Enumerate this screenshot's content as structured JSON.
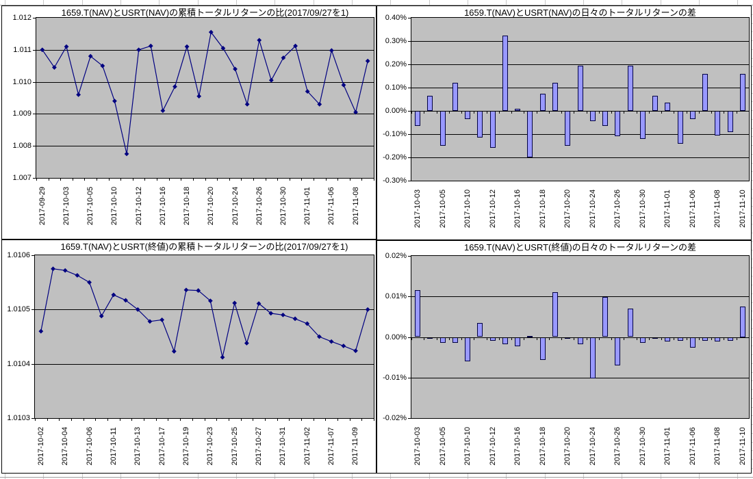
{
  "app": {
    "description_labels": {
      "tl_title": "1659.T(NAV)とUSRT(NAV)の累積トータルリターンの比(2017/09/27を1)",
      "tr_title": "1659.T(NAV)とUSRT(NAV)の日々のトータルリターンの差",
      "bl_title": "1659.T(NAV)とUSRT(終値)の累積トータルリターンの比(2017/09/27を1)",
      "br_title": "1659.T(NAV)とUSRT(終値)の日々のトータルリターンの差"
    },
    "colors": {
      "plot_bg": "#c0c0c0",
      "line": "#000080",
      "marker": "#000080",
      "bar_fill": "#9999ff",
      "bar_border": "#000040",
      "gridline": "#000000",
      "chart_bg": "#ffffff"
    }
  },
  "chart_data": [
    {
      "type": "line",
      "title": "1659.T(NAV)とUSRT(NAV)の累積トータルリターンの比(2017/09/27を1)",
      "legend": "none",
      "grid": "major-horizontal",
      "ylim": [
        1.007,
        1.012
      ],
      "ytick_step": 0.001,
      "ytick_labels": [
        "1.012",
        "1.011",
        "1.010",
        "1.009",
        "1.008",
        "1.007"
      ],
      "x_label_every": 2,
      "x": [
        "2017-09-29",
        "2017-10-02",
        "2017-10-03",
        "2017-10-04",
        "2017-10-05",
        "2017-10-06",
        "2017-10-10",
        "2017-10-11",
        "2017-10-12",
        "2017-10-13",
        "2017-10-16",
        "2017-10-17",
        "2017-10-18",
        "2017-10-19",
        "2017-10-20",
        "2017-10-23",
        "2017-10-24",
        "2017-10-25",
        "2017-10-26",
        "2017-10-27",
        "2017-10-30",
        "2017-10-31",
        "2017-11-01",
        "2017-11-02",
        "2017-11-06",
        "2017-11-07",
        "2017-11-08",
        "2017-11-09"
      ],
      "values": [
        1.011,
        1.01045,
        1.0111,
        1.0096,
        1.0108,
        1.0105,
        1.0094,
        1.00775,
        1.011,
        1.01112,
        1.0091,
        1.00985,
        1.0111,
        1.00955,
        1.01155,
        1.01105,
        1.0104,
        1.0093,
        1.0113,
        1.01005,
        1.01075,
        1.01112,
        1.0097,
        1.0093,
        1.01098,
        1.0099,
        1.00905,
        1.01065
      ]
    },
    {
      "type": "bar",
      "title": "1659.T(NAV)とUSRT(NAV)の日々のトータルリターンの差",
      "legend": "none",
      "grid": "major-horizontal",
      "ylim": [
        -0.3,
        0.4
      ],
      "ytick_step": 0.1,
      "ytick_labels": [
        "0.40%",
        "0.30%",
        "0.20%",
        "0.10%",
        "0.00%",
        "-0.10%",
        "-0.20%",
        "-0.30%"
      ],
      "unit": "percent",
      "x_label_every": 2,
      "x": [
        "2017-10-03",
        "2017-10-04",
        "2017-10-05",
        "2017-10-06",
        "2017-10-10",
        "2017-10-11",
        "2017-10-12",
        "2017-10-13",
        "2017-10-16",
        "2017-10-17",
        "2017-10-18",
        "2017-10-19",
        "2017-10-20",
        "2017-10-23",
        "2017-10-24",
        "2017-10-25",
        "2017-10-26",
        "2017-10-27",
        "2017-10-30",
        "2017-10-31",
        "2017-11-01",
        "2017-11-02",
        "2017-11-06",
        "2017-11-07",
        "2017-11-08",
        "2017-11-09",
        "2017-11-10"
      ],
      "values": [
        -0.065,
        0.065,
        -0.15,
        0.12,
        -0.035,
        -0.115,
        -0.16,
        0.325,
        0.01,
        -0.2,
        0.075,
        0.12,
        -0.15,
        0.195,
        -0.045,
        -0.065,
        -0.11,
        0.195,
        -0.12,
        0.065,
        0.035,
        -0.14,
        -0.035,
        0.16,
        -0.105,
        -0.09,
        0.16
      ]
    },
    {
      "type": "line",
      "title": "1659.T(NAV)とUSRT(終値)の累積トータルリターンの比(2017/09/27を1)",
      "legend": "none",
      "grid": "major-horizontal",
      "ylim": [
        1.0103,
        1.0106
      ],
      "ytick_step": 0.0001,
      "ytick_labels": [
        "1.0106",
        "1.0105",
        "1.0104",
        "1.0103"
      ],
      "x_label_every": 2,
      "x": [
        "2017-10-02",
        "2017-10-03",
        "2017-10-04",
        "2017-10-05",
        "2017-10-06",
        "2017-10-10",
        "2017-10-11",
        "2017-10-12",
        "2017-10-13",
        "2017-10-16",
        "2017-10-17",
        "2017-10-18",
        "2017-10-19",
        "2017-10-20",
        "2017-10-23",
        "2017-10-24",
        "2017-10-25",
        "2017-10-26",
        "2017-10-27",
        "2017-10-30",
        "2017-10-31",
        "2017-11-01",
        "2017-11-02",
        "2017-11-06",
        "2017-11-07",
        "2017-11-08",
        "2017-11-09",
        "2017-11-10"
      ],
      "values": [
        1.01046,
        1.010575,
        1.010572,
        1.010563,
        1.01055,
        1.010488,
        1.010527,
        1.010517,
        1.0105,
        1.010478,
        1.010481,
        1.010423,
        1.010536,
        1.010535,
        1.010516,
        1.010412,
        1.010512,
        1.010438,
        1.010511,
        1.010493,
        1.01049,
        1.010483,
        1.010474,
        1.01045,
        1.010441,
        1.010433,
        1.010424,
        1.0105
      ]
    },
    {
      "type": "bar",
      "title": "1659.T(NAV)とUSRT(終値)の日々のトータルリターンの差",
      "legend": "none",
      "grid": "major-horizontal",
      "ylim": [
        -0.02,
        0.02
      ],
      "ytick_step": 0.01,
      "ytick_labels": [
        "0.02%",
        "0.01%",
        "0.00%",
        "-0.01%",
        "-0.02%"
      ],
      "unit": "percent",
      "x_label_every": 2,
      "x": [
        "2017-10-03",
        "2017-10-04",
        "2017-10-05",
        "2017-10-06",
        "2017-10-10",
        "2017-10-11",
        "2017-10-12",
        "2017-10-13",
        "2017-10-16",
        "2017-10-17",
        "2017-10-18",
        "2017-10-19",
        "2017-10-20",
        "2017-10-23",
        "2017-10-24",
        "2017-10-25",
        "2017-10-26",
        "2017-10-27",
        "2017-10-30",
        "2017-10-31",
        "2017-11-01",
        "2017-11-02",
        "2017-11-06",
        "2017-11-07",
        "2017-11-08",
        "2017-11-09",
        "2017-11-10"
      ],
      "values": [
        0.0115,
        -0.0002,
        -0.0014,
        -0.0014,
        -0.006,
        0.0035,
        -0.001,
        -0.0018,
        -0.0023,
        0.0003,
        -0.0057,
        0.011,
        -0.0001,
        -0.0017,
        -0.0102,
        0.0098,
        -0.007,
        0.007,
        -0.0015,
        -0.0003,
        -0.0011,
        -0.001,
        -0.0027,
        -0.0009,
        -0.0011,
        -0.001,
        0.0075
      ]
    }
  ]
}
